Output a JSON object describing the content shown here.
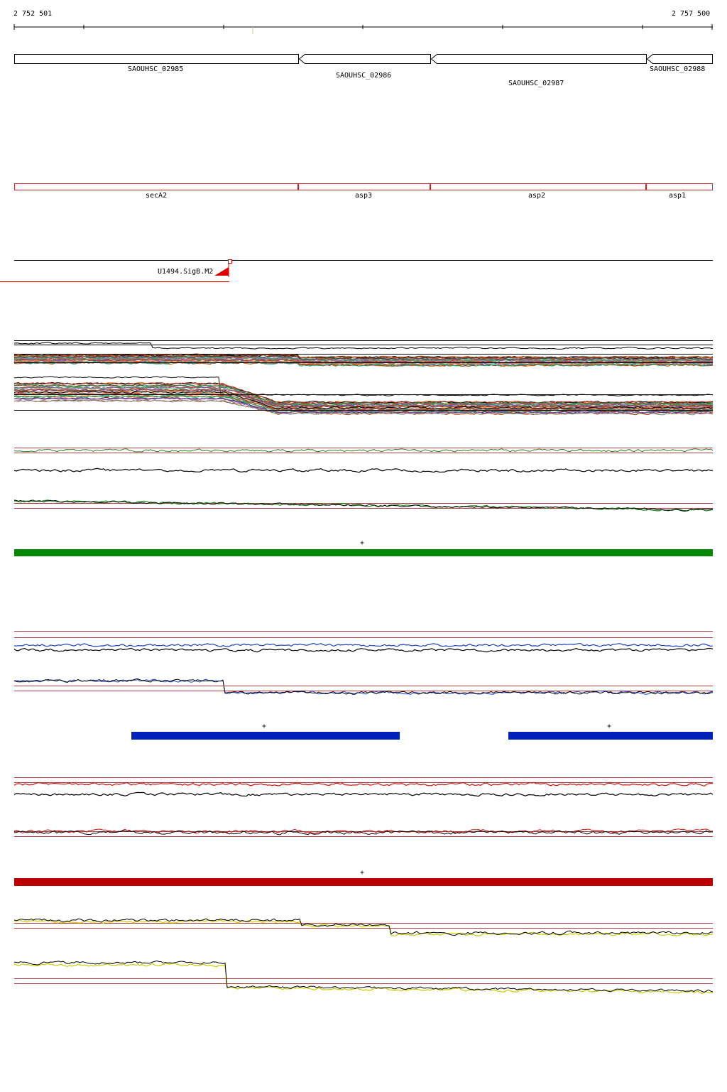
{
  "ruler": {
    "start_label": "2 752 501",
    "end_label": "2 757 500"
  },
  "genes": [
    {
      "name": "SAOUHSC_02985"
    },
    {
      "name": "SAOUHSC_02986"
    },
    {
      "name": "SAOUHSC_02987"
    },
    {
      "name": "SAOUHSC_02988"
    }
  ],
  "gene_names": [
    {
      "name": "secA2"
    },
    {
      "name": "asp3"
    },
    {
      "name": "asp2"
    },
    {
      "name": "asp1"
    }
  ],
  "regulatory": {
    "label": "U1494.SigB.M2"
  },
  "segment_markers": {
    "green": "+",
    "blue_1": "+",
    "blue_2": "+",
    "red": "+"
  },
  "colors": {
    "gene_outline": "#000000",
    "gene_name_outline": "#cc2222",
    "regulatory": "#e00000",
    "green": "#1a8a1a",
    "green_bar": "#008800",
    "blue": "#1a3fc0",
    "blue_bar": "#0022bb",
    "red": "#cc1111",
    "red_bar": "#bb0000",
    "yellow": "#cccc00",
    "threshold": "#b04040"
  }
}
